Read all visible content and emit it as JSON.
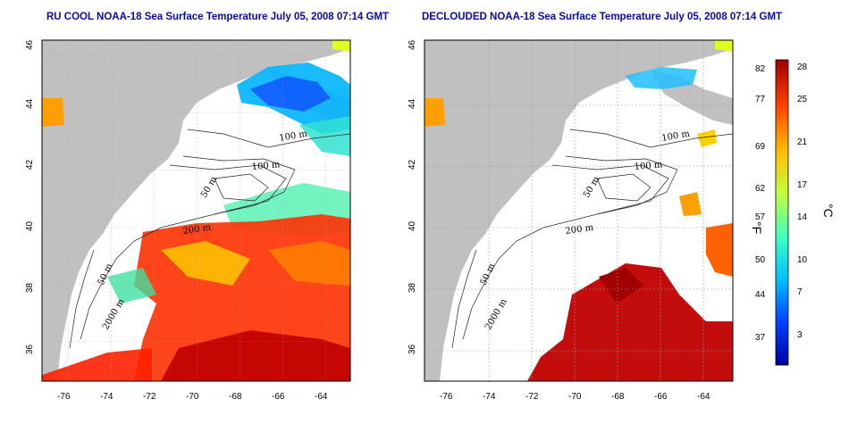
{
  "panels": [
    {
      "id": "left",
      "title": "RU COOL NOAA-18 Sea Surface Temperature July 05, 2008 07:14 GMT",
      "x_ticks": [
        "-76",
        "-74",
        "-72",
        "-70",
        "-68",
        "-66",
        "-64"
      ],
      "y_ticks": [
        "46",
        "44",
        "42",
        "40",
        "38",
        "36"
      ],
      "contour_labels": [
        "100 m",
        "100 m",
        "50 m",
        "200 m",
        "50 m",
        "2000 m"
      ]
    },
    {
      "id": "right",
      "title": "DECLOUDED NOAA-18 Sea Surface Temperature July 05, 2008 07:14 GMT",
      "x_ticks": [
        "-76",
        "-74",
        "-72",
        "-70",
        "-68",
        "-66",
        "-64"
      ],
      "y_ticks": [
        "46",
        "44",
        "42",
        "40",
        "38",
        "36"
      ],
      "contour_labels": [
        "100 m",
        "100 m",
        "50 m",
        "200 m",
        "50 m",
        "2000 m"
      ]
    }
  ],
  "colorbar": {
    "fahrenheit_ticks": [
      "82",
      "77",
      "69",
      "62",
      "57",
      "50",
      "44",
      "37"
    ],
    "celsius_ticks": [
      "28",
      "25",
      "21",
      "17",
      "14",
      "10",
      "7",
      "3"
    ],
    "fahrenheit_label": "°F",
    "celsius_label": "°C",
    "colors": [
      "#0000a0",
      "#0040ff",
      "#00c0ff",
      "#40ffc0",
      "#c0ff40",
      "#ffc000",
      "#ff4000",
      "#a00000"
    ]
  },
  "colors": {
    "land": "#c0c0c0",
    "ocean": "#ffffff",
    "title": "#0a0aa0"
  }
}
